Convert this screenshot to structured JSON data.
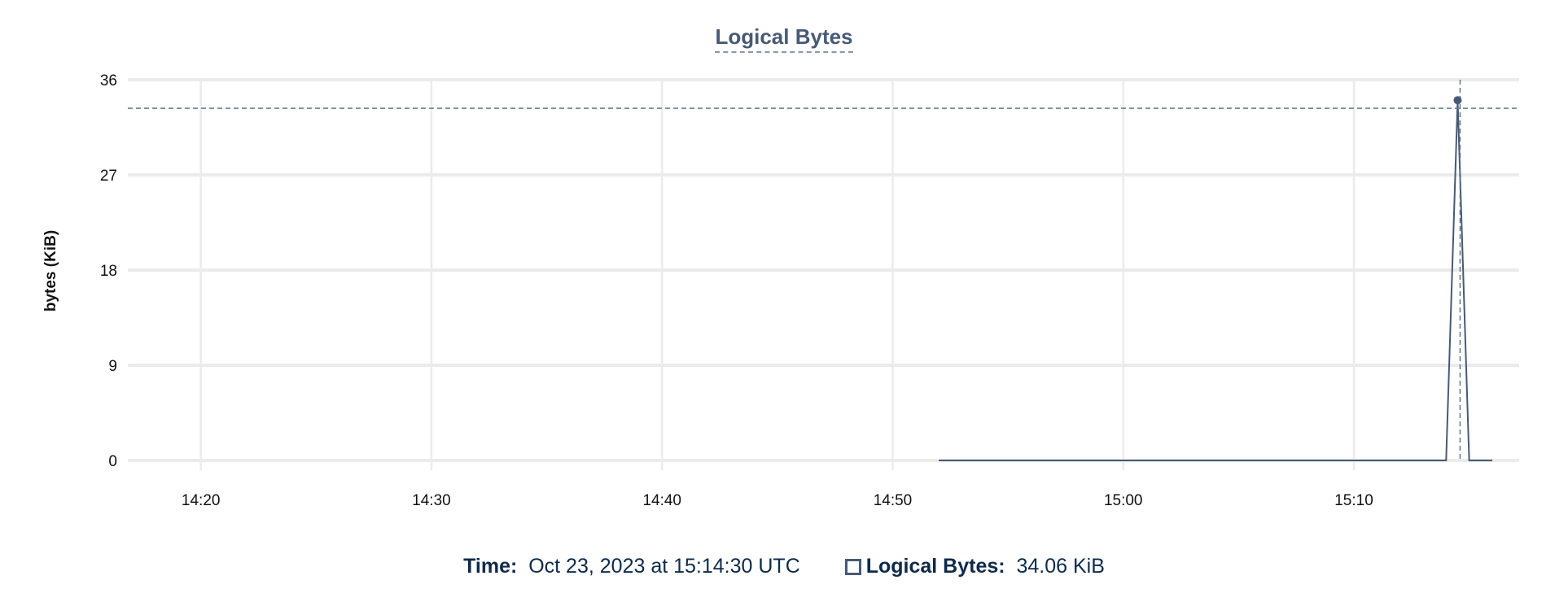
{
  "chart_data": {
    "type": "line",
    "title": "Logical Bytes",
    "ylabel": "bytes (KiB)",
    "xlabel": "",
    "ylim": [
      0,
      36
    ],
    "yticks": [
      0,
      9,
      18,
      27,
      36
    ],
    "xlim": [
      "14:16:50",
      "15:17:10"
    ],
    "xticks": [
      "14:20",
      "14:30",
      "14:40",
      "14:50",
      "15:00",
      "15:10"
    ],
    "grid": true,
    "series": [
      {
        "name": "Logical Bytes",
        "color": "#475a75",
        "x": [
          "14:52:00",
          "15:14:00",
          "15:14:30",
          "15:15:00",
          "15:16:00"
        ],
        "values": [
          0,
          0,
          34.06,
          0,
          0
        ]
      }
    ],
    "hover": {
      "x": "15:14:30",
      "value": 34.06
    },
    "reference_line": 33.3
  },
  "footer": {
    "time_label": "Time:",
    "time_value": "Oct 23, 2023 at 15:14:30 UTC",
    "series_label": "Logical Bytes:",
    "series_value": "34.06 KiB"
  },
  "colors": {
    "series": "#475a75",
    "grid": "#ebebeb",
    "crosshair": "#5f7a87",
    "text": "#0e2a4a"
  }
}
